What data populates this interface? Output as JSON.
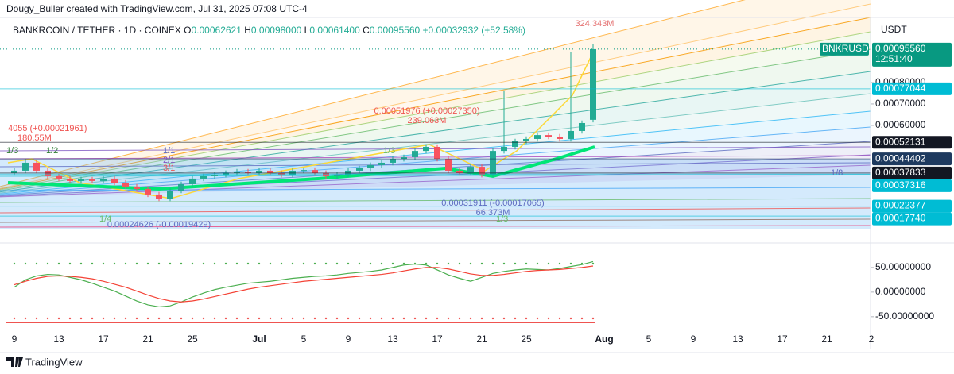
{
  "header": {
    "credit": "Dougy_Buller created with TradingView.com, Jul 31, 2025 07:08 UTC-4"
  },
  "legend": {
    "symbol": "BANKRCOIN / TETHER · 1D · COINEX",
    "ohlc": [
      {
        "key": "O",
        "value": "0.00062621"
      },
      {
        "key": "H",
        "value": "0.00098000"
      },
      {
        "key": "L",
        "value": "0.00061400"
      },
      {
        "key": "C",
        "value": "0.00095560"
      }
    ],
    "change": "+0.00032932 (+52.58%)"
  },
  "footer": {
    "brand": "TradingView"
  },
  "chart_data": [
    {
      "type": "candlestick",
      "currency": "USDT",
      "up_color": "#22ab94",
      "down_color": "#f7525f",
      "open": [
        0.000378,
        0.000389,
        0.000426,
        0.000389,
        0.000363,
        0.000352,
        0.000341,
        0.000348,
        0.000341,
        0.000352,
        0.000333,
        0.000315,
        0.000304,
        0.000278,
        0.000259,
        0.000296,
        0.000326,
        0.000352,
        0.000363,
        0.00037,
        0.000378,
        0.000385,
        0.000378,
        0.000389,
        0.000378,
        0.00037,
        0.000389,
        0.000392,
        0.000378,
        0.000363,
        0.00037,
        0.000389,
        0.0004,
        0.000415,
        0.000426,
        0.000444,
        0.000452,
        0.000481,
        0.0005,
        0.000444,
        0.000389,
        0.000378,
        0.000407,
        0.00037,
        0.000481,
        0.0005,
        0.000526,
        0.000537,
        0.000555,
        0.000548,
        0.000537,
        0.000574,
        0.00062621
      ],
      "high": [
        0.000401,
        0.000445,
        0.000438,
        0.000401,
        0.000375,
        0.000364,
        0.00036,
        0.00036,
        0.000364,
        0.000364,
        0.000345,
        0.000327,
        0.000316,
        0.00029,
        0.000308,
        0.000338,
        0.000364,
        0.000375,
        0.000382,
        0.00039,
        0.000397,
        0.000397,
        0.000401,
        0.000401,
        0.00039,
        0.000401,
        0.000404,
        0.000404,
        0.00039,
        0.000382,
        0.000401,
        0.000412,
        0.000427,
        0.000438,
        0.000456,
        0.000464,
        0.000493,
        0.000512,
        0.000512,
        0.000456,
        0.000401,
        0.000419,
        0.000419,
        0.000493,
        0.000763,
        0.000538,
        0.000549,
        0.000567,
        0.000567,
        0.00056,
        0.000944,
        0.000623,
        0.00098
      ],
      "low": [
        0.000366,
        0.000377,
        0.000377,
        0.000351,
        0.00034,
        0.000329,
        0.000329,
        0.000329,
        0.000329,
        0.000321,
        0.000303,
        0.000292,
        0.000266,
        0.000247,
        0.000247,
        0.000284,
        0.000314,
        0.00034,
        0.000351,
        0.000358,
        0.000366,
        0.000366,
        0.000366,
        0.000366,
        0.000358,
        0.000358,
        0.000377,
        0.000366,
        0.000351,
        0.000351,
        0.000358,
        0.000377,
        0.000388,
        0.000403,
        0.000414,
        0.000432,
        0.00044,
        0.000469,
        0.000432,
        0.000377,
        0.000366,
        0.000366,
        0.000358,
        0.000358,
        0.000469,
        0.000488,
        0.000514,
        0.000525,
        0.000536,
        0.000525,
        0.000525,
        0.000562,
        0.000614
      ],
      "close": [
        0.000389,
        0.000426,
        0.000389,
        0.000363,
        0.000352,
        0.000341,
        0.000348,
        0.000341,
        0.000352,
        0.000333,
        0.000315,
        0.000304,
        0.000278,
        0.000259,
        0.000296,
        0.000326,
        0.000352,
        0.000363,
        0.00037,
        0.000378,
        0.000385,
        0.000378,
        0.000389,
        0.000378,
        0.00037,
        0.000389,
        0.000392,
        0.000378,
        0.000363,
        0.00037,
        0.000389,
        0.0004,
        0.000415,
        0.000426,
        0.000444,
        0.000452,
        0.000481,
        0.0005,
        0.000444,
        0.000389,
        0.000378,
        0.000407,
        0.00037,
        0.000481,
        0.0005,
        0.000526,
        0.000537,
        0.000555,
        0.000548,
        0.000537,
        0.000574,
        0.000611,
        0.0009556
      ],
      "ylim": [
        0.0001185,
        0.001096
      ],
      "yticks": [
        {
          "value": 0.0006,
          "label": "0.00060000"
        },
        {
          "value": 0.0007,
          "label": "0.00070000"
        },
        {
          "value": 0.0008,
          "label": "0.00080000"
        }
      ],
      "last_price": {
        "symbol": "BNKRUSDT",
        "value": 0.0009556,
        "label": "0.00095560",
        "countdown": "12:51:40",
        "color": "#089981"
      },
      "price_tags": [
        {
          "value": 0.00077044,
          "color": "#00bcd4"
        },
        {
          "value": 0.00052131,
          "color": "#131722"
        },
        {
          "value": 0.00044402,
          "color": "#1e3a5f"
        },
        {
          "value": 0.00037833,
          "color": "#131722"
        },
        {
          "value": 0.00037316,
          "color": "#00bcd4"
        },
        {
          "value": 0.00022377,
          "color": "#00bcd4"
        },
        {
          "value": 0.0001774,
          "label": "0.00017740",
          "color": "#00bcd4"
        }
      ],
      "annotations": [
        "324.343M",
        "0.00051976 (+0.00027350)",
        "239.063M",
        "4055 (+0.00021961)",
        "180.55M",
        "0.00031911 (-0.00017065)",
        "66.373M",
        "0.00024626 (-0.00019429)"
      ],
      "fib_labels": [
        "1/3",
        "1/2",
        "1/1",
        "2/1",
        "3/1",
        "1/3",
        "1/8",
        "1/4",
        "1/3"
      ],
      "x_labels": [
        "9",
        "13",
        "17",
        "21",
        "25",
        "Jul",
        "5",
        "9",
        "13",
        "17",
        "21",
        "25",
        "Aug",
        "5",
        "9",
        "13",
        "17",
        "21",
        "2"
      ]
    },
    {
      "type": "line",
      "series": [
        {
          "color": "#4caf50",
          "values": [
            10,
            25,
            33,
            36,
            35,
            30,
            25,
            18,
            10,
            2,
            -8,
            -18,
            -26,
            -30,
            -28,
            -20,
            -10,
            -2,
            5,
            10,
            14,
            18,
            20,
            22,
            25,
            28,
            30,
            32,
            33,
            35,
            38,
            40,
            42,
            45,
            50,
            55,
            57,
            55,
            45,
            35,
            28,
            22,
            30,
            38,
            42,
            45,
            47,
            46,
            45,
            48,
            52,
            56,
            62
          ]
        },
        {
          "color": "#f44336",
          "values": [
            15,
            22,
            28,
            32,
            33,
            32,
            30,
            27,
            22,
            16,
            10,
            2,
            -6,
            -13,
            -18,
            -20,
            -18,
            -14,
            -9,
            -4,
            1,
            6,
            10,
            13,
            16,
            19,
            22,
            24,
            26,
            28,
            30,
            32,
            34,
            36,
            39,
            43,
            47,
            50,
            50,
            47,
            42,
            37,
            34,
            34,
            36,
            39,
            42,
            44,
            45,
            46,
            48,
            50,
            53
          ]
        }
      ],
      "ylim": [
        -68,
        74
      ],
      "yticks": [
        {
          "value": -50,
          "label": "-50.00000000"
        },
        {
          "value": 0,
          "label": "0.00000000"
        },
        {
          "value": 50,
          "label": "50.00000000"
        }
      ]
    }
  ]
}
